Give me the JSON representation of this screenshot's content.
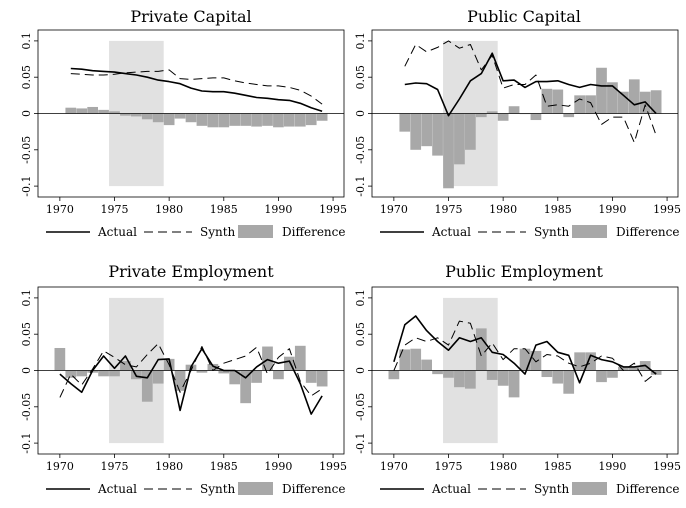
{
  "colors": {
    "actual": "#000000",
    "synth": "#000000",
    "difference": "#a8a8a8",
    "treatment_band": "#e1e1e1"
  },
  "legend": {
    "actual": "Actual",
    "synth": "Synth",
    "difference": "Difference"
  },
  "chart_data": [
    {
      "type": "line",
      "title": "Private Capital",
      "xlim": [
        1968,
        1996
      ],
      "ylim": [
        -0.115,
        0.115
      ],
      "x_ticks": [
        1970,
        1975,
        1980,
        1985,
        1990,
        1995
      ],
      "y_ticks": [
        0.1,
        0.05,
        0,
        -0.05,
        -0.1
      ],
      "y_tick_labels": [
        "0.1",
        "0.05",
        "0",
        "-0.05",
        "-0.1"
      ],
      "treatment_band": {
        "x": [
          1974.5,
          1979.5
        ],
        "y": [
          -0.1,
          0.1
        ]
      },
      "x": [
        1971,
        1972,
        1973,
        1974,
        1975,
        1976,
        1977,
        1978,
        1979,
        1980,
        1981,
        1982,
        1983,
        1984,
        1985,
        1986,
        1987,
        1988,
        1989,
        1990,
        1991,
        1992,
        1993,
        1994
      ],
      "series": [
        {
          "name": "Actual",
          "style": "solid",
          "values": [
            0.062,
            0.061,
            0.059,
            0.058,
            0.057,
            0.055,
            0.053,
            0.05,
            0.046,
            0.044,
            0.041,
            0.035,
            0.031,
            0.03,
            0.03,
            0.028,
            0.025,
            0.022,
            0.021,
            0.019,
            0.018,
            0.014,
            0.008,
            0.003
          ]
        },
        {
          "name": "Synth",
          "style": "dashed",
          "values": [
            0.055,
            0.054,
            0.053,
            0.053,
            0.054,
            0.056,
            0.057,
            0.058,
            0.058,
            0.06,
            0.048,
            0.047,
            0.048,
            0.049,
            0.049,
            0.045,
            0.042,
            0.04,
            0.038,
            0.038,
            0.036,
            0.032,
            0.024,
            0.013
          ]
        },
        {
          "name": "Difference",
          "style": "bar",
          "values": [
            0.008,
            0.007,
            0.009,
            0.005,
            0.003,
            -0.003,
            -0.004,
            -0.008,
            -0.012,
            -0.016,
            -0.007,
            -0.012,
            -0.017,
            -0.019,
            -0.019,
            -0.017,
            -0.017,
            -0.018,
            -0.017,
            -0.019,
            -0.018,
            -0.018,
            -0.016,
            -0.01
          ]
        }
      ]
    },
    {
      "type": "line",
      "title": "Public Capital",
      "xlim": [
        1968,
        1996
      ],
      "ylim": [
        -0.115,
        0.115
      ],
      "x_ticks": [
        1970,
        1975,
        1980,
        1985,
        1990,
        1995
      ],
      "y_ticks": [
        0.1,
        0.05,
        0,
        -0.05,
        -0.1
      ],
      "y_tick_labels": [
        "0.1",
        "0.05",
        "0",
        "-0.05",
        "-0.1"
      ],
      "treatment_band": {
        "x": [
          1974.5,
          1979.5
        ],
        "y": [
          -0.1,
          0.1
        ]
      },
      "x": [
        1971,
        1972,
        1973,
        1974,
        1975,
        1976,
        1977,
        1978,
        1979,
        1980,
        1981,
        1982,
        1983,
        1984,
        1985,
        1986,
        1987,
        1988,
        1989,
        1990,
        1991,
        1992,
        1993,
        1994
      ],
      "series": [
        {
          "name": "Actual",
          "style": "solid",
          "values": [
            0.04,
            0.042,
            0.041,
            0.033,
            -0.003,
            0.02,
            0.045,
            0.055,
            0.083,
            0.045,
            0.046,
            0.036,
            0.044,
            0.044,
            0.045,
            0.04,
            0.036,
            0.04,
            0.038,
            0.038,
            0.025,
            0.012,
            0.016,
            0.0
          ]
        },
        {
          "name": "Synth",
          "style": "dashed",
          "values": [
            0.065,
            0.095,
            0.085,
            0.091,
            0.1,
            0.09,
            0.095,
            0.06,
            0.08,
            0.035,
            0.04,
            0.04,
            0.053,
            0.01,
            0.012,
            0.01,
            0.02,
            0.015,
            -0.015,
            -0.005,
            -0.005,
            -0.04,
            0.012,
            -0.03
          ]
        },
        {
          "name": "Difference",
          "style": "bar",
          "values": [
            -0.025,
            -0.05,
            -0.045,
            -0.058,
            -0.103,
            -0.07,
            -0.05,
            -0.005,
            0.003,
            -0.01,
            0.01,
            0.0,
            -0.009,
            0.034,
            0.033,
            -0.005,
            0.025,
            0.025,
            0.063,
            0.043,
            0.03,
            0.047,
            0.03,
            0.032
          ]
        }
      ]
    },
    {
      "type": "line",
      "title": "Private Employment",
      "xlim": [
        1968,
        1996
      ],
      "ylim": [
        -0.115,
        0.115
      ],
      "x_ticks": [
        1970,
        1975,
        1980,
        1985,
        1990,
        1995
      ],
      "y_ticks": [
        0.1,
        0.05,
        0,
        -0.05,
        -0.1
      ],
      "y_tick_labels": [
        "0.1",
        "0.05",
        "0",
        "-0.05",
        "-0.1"
      ],
      "treatment_band": {
        "x": [
          1974.5,
          1979.5
        ],
        "y": [
          -0.1,
          0.1
        ]
      },
      "x": [
        1970,
        1971,
        1972,
        1973,
        1974,
        1975,
        1976,
        1977,
        1978,
        1979,
        1980,
        1981,
        1982,
        1983,
        1984,
        1985,
        1986,
        1987,
        1988,
        1989,
        1990,
        1991,
        1992,
        1993,
        1994
      ],
      "series": [
        {
          "name": "Actual",
          "style": "solid",
          "values": [
            -0.005,
            -0.018,
            -0.03,
            0.0,
            0.02,
            0.003,
            0.02,
            -0.008,
            -0.01,
            0.015,
            0.016,
            -0.055,
            0.005,
            0.03,
            0.006,
            0.0,
            0.0,
            -0.01,
            0.005,
            0.015,
            0.01,
            0.013,
            -0.018,
            -0.06,
            -0.035
          ]
        },
        {
          "name": "Synth",
          "style": "dashed",
          "values": [
            -0.037,
            -0.005,
            -0.02,
            0.002,
            0.027,
            0.018,
            0.008,
            0.005,
            0.022,
            0.037,
            0.008,
            -0.03,
            0.0,
            0.033,
            0.0,
            0.01,
            0.015,
            0.02,
            0.032,
            -0.005,
            0.018,
            0.03,
            -0.015,
            -0.035,
            -0.025
          ]
        },
        {
          "name": "Difference",
          "style": "bar",
          "values": [
            0.031,
            -0.01,
            -0.008,
            -0.003,
            -0.008,
            -0.008,
            0.013,
            -0.012,
            -0.043,
            -0.018,
            0.016,
            -0.028,
            0.008,
            -0.003,
            0.009,
            -0.004,
            -0.019,
            -0.045,
            -0.017,
            0.033,
            -0.012,
            0.019,
            0.034,
            -0.017,
            -0.022
          ]
        }
      ]
    },
    {
      "type": "line",
      "title": "Public Employment",
      "xlim": [
        1968,
        1996
      ],
      "ylim": [
        -0.115,
        0.115
      ],
      "x_ticks": [
        1970,
        1975,
        1980,
        1985,
        1990,
        1995
      ],
      "y_ticks": [
        0.1,
        0.05,
        0,
        -0.05,
        -0.1
      ],
      "y_tick_labels": [
        "0.1",
        "0.05",
        "0",
        "-0.05",
        "-0.1"
      ],
      "treatment_band": {
        "x": [
          1974.5,
          1979.5
        ],
        "y": [
          -0.1,
          0.1
        ]
      },
      "x": [
        1970,
        1971,
        1972,
        1973,
        1974,
        1975,
        1976,
        1977,
        1978,
        1979,
        1980,
        1981,
        1982,
        1983,
        1984,
        1985,
        1986,
        1987,
        1988,
        1989,
        1990,
        1991,
        1992,
        1993,
        1994
      ],
      "series": [
        {
          "name": "Actual",
          "style": "solid",
          "values": [
            0.012,
            0.063,
            0.075,
            0.055,
            0.04,
            0.028,
            0.045,
            0.04,
            0.045,
            0.025,
            0.022,
            0.01,
            -0.005,
            0.035,
            0.04,
            0.025,
            0.021,
            -0.017,
            0.021,
            0.015,
            0.012,
            0.005,
            0.005,
            0.007,
            -0.005
          ]
        },
        {
          "name": "Synth",
          "style": "dashed",
          "values": [
            0.0,
            0.035,
            0.045,
            0.04,
            0.045,
            0.035,
            0.068,
            0.065,
            0.02,
            0.038,
            0.015,
            0.03,
            0.03,
            0.012,
            0.022,
            0.02,
            0.01,
            0.005,
            0.01,
            0.02,
            0.017,
            0.0,
            0.01,
            -0.015,
            -0.003
          ]
        },
        {
          "name": "Difference",
          "style": "bar",
          "values": [
            -0.012,
            0.029,
            0.03,
            0.015,
            -0.005,
            -0.01,
            -0.023,
            -0.025,
            0.058,
            -0.013,
            -0.021,
            -0.037,
            0.03,
            0.027,
            -0.009,
            -0.018,
            -0.032,
            0.025,
            0.025,
            -0.016,
            -0.01,
            0.005,
            0.005,
            0.013,
            -0.006
          ]
        }
      ]
    }
  ]
}
